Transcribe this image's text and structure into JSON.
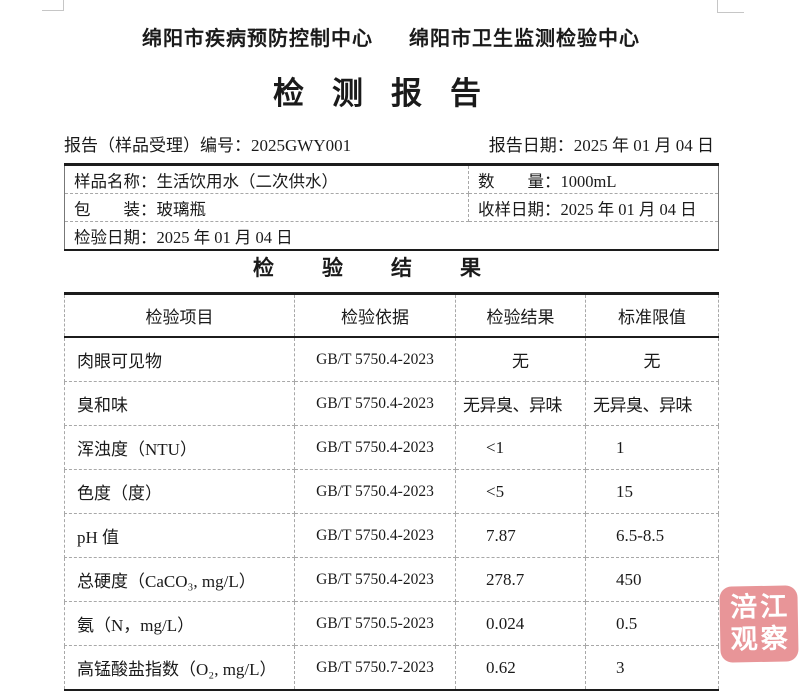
{
  "header": {
    "org_left": "绵阳市疾病预防控制中心",
    "org_right": "绵阳市卫生监测检验中心",
    "title": "检测报告"
  },
  "report_info": {
    "number_label": "报告（样品受理）编号：",
    "number_value": "2025GWY001",
    "date_label": "报告日期：",
    "date_value": "2025 年 01 月 04 日"
  },
  "sample_info": {
    "sample_name_label": "样品名称：",
    "sample_name_value": "生活饮用水（二次供水）",
    "quantity_label": "数　　量：",
    "quantity_value": "1000mL",
    "packaging_label": "包　　装：",
    "packaging_value": "玻璃瓶",
    "receive_date_label": "收样日期：",
    "receive_date_value": "2025 年 01 月 04 日",
    "test_date_label": "检验日期：",
    "test_date_value": "2025 年 01 月 04 日"
  },
  "results": {
    "section_title": "检验结果",
    "columns": [
      "检验项目",
      "检验依据",
      "检验结果",
      "标准限值"
    ],
    "rows": [
      {
        "item": "肉眼可见物",
        "basis": "GB/T 5750.4-2023",
        "result": "无",
        "limit": "无"
      },
      {
        "item": "臭和味",
        "basis": "GB/T 5750.4-2023",
        "result": "无异臭、异味",
        "limit": "无异臭、异味"
      },
      {
        "item": "浑浊度（NTU）",
        "basis": "GB/T 5750.4-2023",
        "result": "<1",
        "limit": "1"
      },
      {
        "item": "色度（度）",
        "basis": "GB/T 5750.4-2023",
        "result": "<5",
        "limit": "15"
      },
      {
        "item": "pH 值",
        "basis": "GB/T 5750.4-2023",
        "result": "7.87",
        "limit": "6.5-8.5"
      },
      {
        "item": "总硬度（CaCO₃, mg/L）",
        "basis": "GB/T 5750.4-2023",
        "result": "278.7",
        "limit": "450"
      },
      {
        "item": "氨（N，mg/L）",
        "basis": "GB/T 5750.5-2023",
        "result": "0.024",
        "limit": "0.5"
      },
      {
        "item": "高锰酸盐指数（O₂, mg/L）",
        "basis": "GB/T 5750.7-2023",
        "result": "0.62",
        "limit": "3"
      }
    ]
  },
  "watermark": {
    "line1": "涪江",
    "line2": "观察",
    "color": "#e89598",
    "text_color": "#ffffff"
  }
}
